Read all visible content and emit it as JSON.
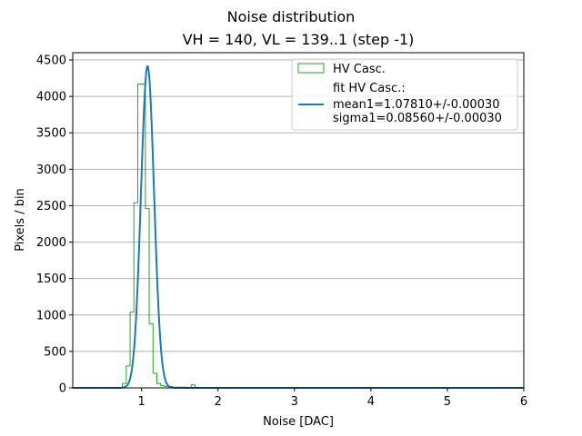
{
  "chart_data": {
    "type": "histogram",
    "title": "Noise distribution",
    "subtitle": "VH = 140, VL = 139..1 (step -1)",
    "xlabel": "Noise [DAC]",
    "ylabel": "Pixels / bin",
    "xlim": [
      0.1,
      6.0
    ],
    "ylim": [
      0,
      4600
    ],
    "xticks": [
      1,
      2,
      3,
      4,
      5,
      6
    ],
    "yticks": [
      0,
      500,
      1000,
      1500,
      2000,
      2500,
      3000,
      3500,
      4000,
      4500
    ],
    "grid": "horizontal",
    "legend_position": "top-right",
    "colors": {
      "histogram": "#2ca02c",
      "fit": "#1f77b4",
      "grid": "#b0b0b0"
    },
    "histogram": {
      "name": "HV Casc.",
      "bin_edges": [
        0.7,
        0.75,
        0.8,
        0.85,
        0.9,
        0.95,
        1.0,
        1.05,
        1.1,
        1.15,
        1.2,
        1.25,
        1.3,
        1.35,
        1.4,
        1.45,
        1.5,
        1.55,
        1.6,
        1.65,
        1.7,
        1.75,
        1.8
      ],
      "counts": [
        0,
        60,
        300,
        1040,
        2540,
        4170,
        4170,
        2460,
        880,
        200,
        60,
        30,
        20,
        20,
        10,
        10,
        10,
        10,
        0,
        40,
        0,
        0
      ]
    },
    "fit": {
      "name": "fit HV Casc.:",
      "mean_label": "mean1=1.07810+/-0.00030",
      "sigma_label": "sigma1=0.08560+/-0.00030",
      "mean": 1.0781,
      "sigma": 0.0856,
      "amplitude": 4420
    }
  }
}
